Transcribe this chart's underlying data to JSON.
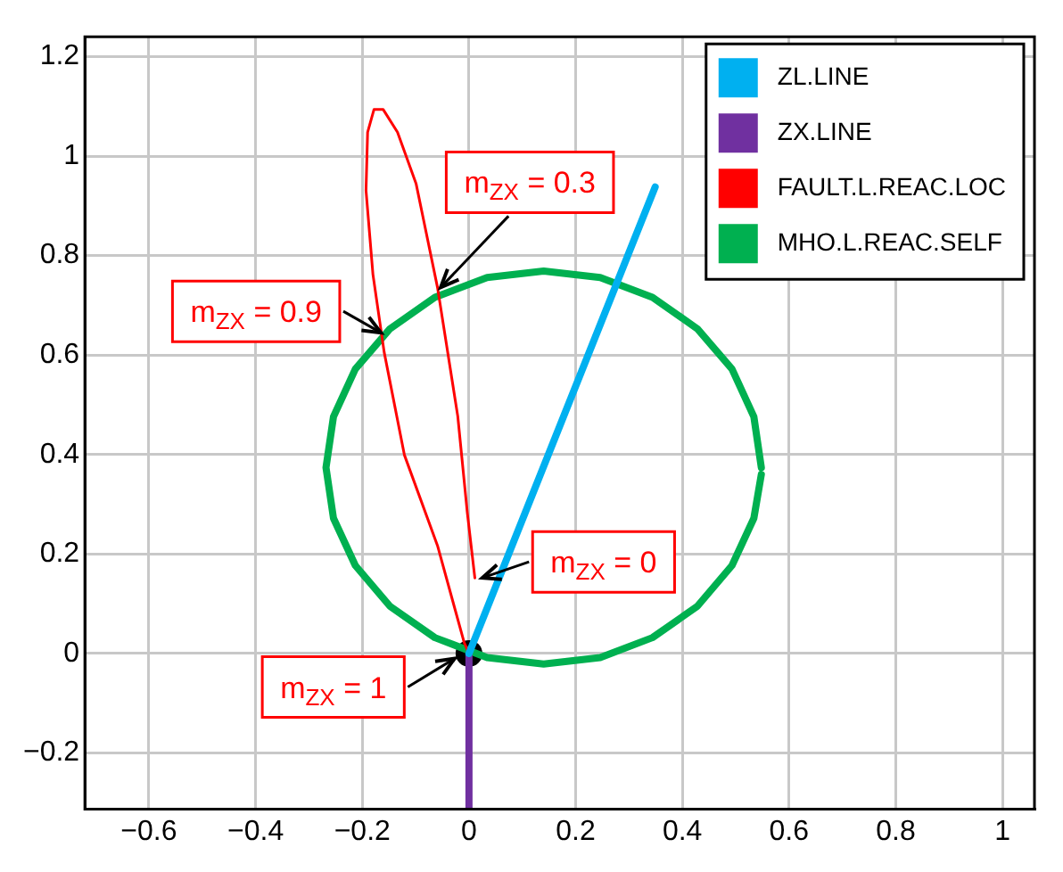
{
  "chart_data": {
    "type": "line",
    "xlim": [
      -0.72,
      1.06
    ],
    "ylim": [
      -0.313,
      1.24
    ],
    "xticks": [
      {
        "value": -0.6,
        "label": "−0.6"
      },
      {
        "value": -0.4,
        "label": "−0.4"
      },
      {
        "value": -0.2,
        "label": "−0.2"
      },
      0,
      0.2,
      0.4,
      0.6,
      0.8,
      1
    ],
    "yticks": [
      {
        "value": -0.2,
        "label": "−0.2"
      },
      0,
      0.2,
      0.4,
      0.6,
      0.8,
      1,
      1.2
    ],
    "grid": true,
    "legend": "top right",
    "marker": "none",
    "line_style": "solid",
    "series": [
      {
        "name": "ZL.LINE",
        "color": "#00b0f0",
        "x": [
          0,
          0.349
        ],
        "values": [
          0,
          0.938
        ]
      },
      {
        "name": "ZX.LINE",
        "color": "#7030a0",
        "x": [
          0,
          0
        ],
        "values": [
          0,
          -0.313
        ]
      },
      {
        "name": "FAULT.L.REAC.LOC",
        "color": "#ff0000",
        "x": [
          0.011,
          -0.003,
          -0.021,
          -0.059,
          -0.099,
          -0.134,
          -0.161,
          -0.178,
          -0.19,
          -0.193,
          -0.18,
          -0.159,
          -0.121,
          -0.059,
          -0.009,
          0
        ],
        "values": [
          0.152,
          0.282,
          0.477,
          0.736,
          0.944,
          1.048,
          1.094,
          1.094,
          1.048,
          0.931,
          0.762,
          0.606,
          0.399,
          0.217,
          0.022,
          0
        ]
      },
      {
        "name": "MHO.L.REAC.SELF",
        "color": "#00b050",
        "x": [
          0.548,
          0.534,
          0.493,
          0.428,
          0.344,
          0.246,
          0.14,
          0.034,
          -0.064,
          -0.148,
          -0.213,
          -0.254,
          -0.268,
          -0.254,
          -0.213,
          -0.148,
          -0.064,
          0.034,
          0.14,
          0.246,
          0.344,
          0.428,
          0.493,
          0.534,
          0.548
        ],
        "values": [
          0.374,
          0.476,
          0.572,
          0.653,
          0.716,
          0.756,
          0.769,
          0.756,
          0.716,
          0.653,
          0.572,
          0.476,
          0.374,
          0.272,
          0.177,
          0.095,
          0.032,
          -0.008,
          -0.021,
          -0.008,
          0.032,
          0.095,
          0.177,
          0.272,
          0.36
        ]
      },
      {
        "type": "scatter",
        "marker": "circle",
        "color": "#000000",
        "x": [
          0
        ],
        "values": [
          0
        ]
      }
    ],
    "annotations": [
      {
        "text": "m$_{ZX}$ = 0.9",
        "x": -0.165,
        "y": 0.645
      },
      {
        "text": "m$_{ZX}$ = 0.3",
        "x": -0.053,
        "y": 0.736
      },
      {
        "text": "m$_{ZX}$ = 0",
        "x": 0.025,
        "y": 0.152
      },
      {
        "text": "m$_{ZX}$ = 1",
        "x": -0.027,
        "y": -0.01
      }
    ]
  }
}
